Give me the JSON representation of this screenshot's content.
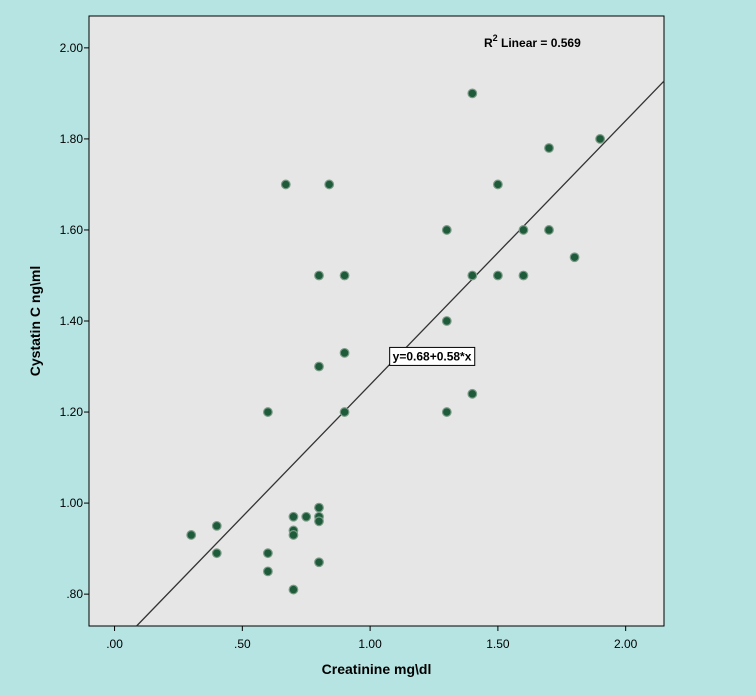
{
  "colors": {
    "figure_background": "#b6e4e2",
    "plot_background": "#e6e6e6",
    "point_fill": "#1e5b3a",
    "point_stroke": "#7a9a85",
    "line": "#333333"
  },
  "chart_data": {
    "type": "scatter",
    "xlabel": "Creatinine mg\\dl",
    "ylabel": "Cystatin C ng\\ml",
    "xlim": [
      -0.1,
      2.15
    ],
    "ylim": [
      0.73,
      2.07
    ],
    "xticks": [
      {
        "value": 0.0,
        "label": ".00"
      },
      {
        "value": 0.5,
        "label": ".50"
      },
      {
        "value": 1.0,
        "label": "1.00"
      },
      {
        "value": 1.5,
        "label": "1.50"
      },
      {
        "value": 2.0,
        "label": "2.00"
      }
    ],
    "yticks": [
      {
        "value": 0.8,
        "label": ".80"
      },
      {
        "value": 1.0,
        "label": "1.00"
      },
      {
        "value": 1.2,
        "label": "1.20"
      },
      {
        "value": 1.4,
        "label": "1.40"
      },
      {
        "value": 1.6,
        "label": "1.60"
      },
      {
        "value": 1.8,
        "label": "1.80"
      },
      {
        "value": 2.0,
        "label": "2.00"
      }
    ],
    "grid": false,
    "points": [
      {
        "x": 0.3,
        "y": 0.93
      },
      {
        "x": 0.4,
        "y": 0.95
      },
      {
        "x": 0.4,
        "y": 0.89
      },
      {
        "x": 0.6,
        "y": 0.89
      },
      {
        "x": 0.6,
        "y": 0.85
      },
      {
        "x": 0.6,
        "y": 1.2
      },
      {
        "x": 0.67,
        "y": 1.7
      },
      {
        "x": 0.7,
        "y": 0.97
      },
      {
        "x": 0.7,
        "y": 0.94
      },
      {
        "x": 0.7,
        "y": 0.93
      },
      {
        "x": 0.7,
        "y": 0.81
      },
      {
        "x": 0.75,
        "y": 0.97
      },
      {
        "x": 0.8,
        "y": 0.99
      },
      {
        "x": 0.8,
        "y": 0.97
      },
      {
        "x": 0.8,
        "y": 0.96
      },
      {
        "x": 0.8,
        "y": 0.87
      },
      {
        "x": 0.8,
        "y": 1.3
      },
      {
        "x": 0.8,
        "y": 1.5
      },
      {
        "x": 0.84,
        "y": 1.7
      },
      {
        "x": 0.9,
        "y": 1.5
      },
      {
        "x": 0.9,
        "y": 1.33
      },
      {
        "x": 0.9,
        "y": 1.2
      },
      {
        "x": 1.3,
        "y": 1.6
      },
      {
        "x": 1.3,
        "y": 1.4
      },
      {
        "x": 1.3,
        "y": 1.2
      },
      {
        "x": 1.4,
        "y": 1.9
      },
      {
        "x": 1.4,
        "y": 1.5
      },
      {
        "x": 1.4,
        "y": 1.24
      },
      {
        "x": 1.5,
        "y": 1.7
      },
      {
        "x": 1.5,
        "y": 1.5
      },
      {
        "x": 1.6,
        "y": 1.6
      },
      {
        "x": 1.6,
        "y": 1.5
      },
      {
        "x": 1.7,
        "y": 1.78
      },
      {
        "x": 1.7,
        "y": 1.6
      },
      {
        "x": 1.8,
        "y": 1.54
      },
      {
        "x": 1.9,
        "y": 1.8
      }
    ],
    "fit_line": {
      "intercept": 0.68,
      "slope": 0.58
    },
    "annotations": {
      "r2_prefix": "R",
      "r2_superscript": "2",
      "r2_suffix": " Linear = 0.569",
      "equation": "y=0.68+0.58*x",
      "equation_anchor": {
        "x": 1.1,
        "y": 1.32
      }
    }
  }
}
